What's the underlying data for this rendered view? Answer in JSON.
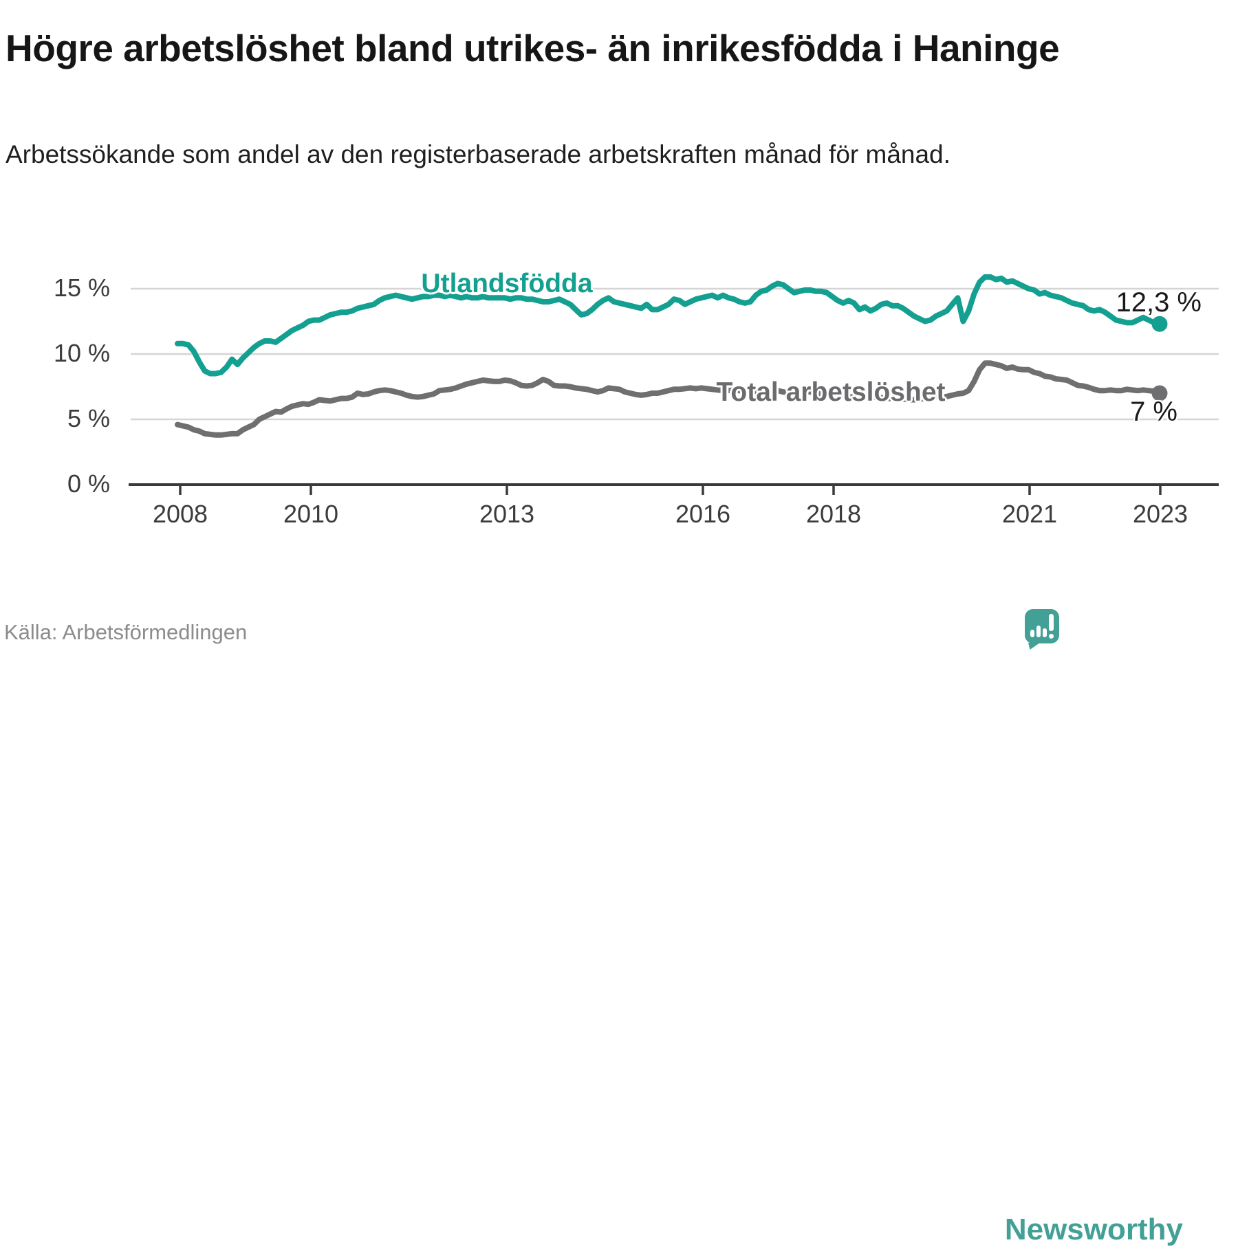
{
  "header": {
    "title": "Högre arbetslöshet bland utrikes- än inrikesfödda i Haninge",
    "subtitle": "Arbetssökande som andel av den registerbaserade arbetskraften månad för månad."
  },
  "footer": {
    "source": "Källa: Arbetsförmedlingen",
    "logo_text": "Newsworthy"
  },
  "colors": {
    "series_utlandsfodda": "#14a090",
    "series_total": "#6f6f71",
    "axis": "#3a3a3a",
    "grid": "#d5d5d5",
    "logo": "#42a096",
    "end_label_text": "#1a1a1a"
  },
  "chart_data": {
    "type": "line",
    "title": "Högre arbetslöshet bland utrikes- än inrikesfödda i Haninge",
    "subtitle": "Arbetssökande som andel av den registerbaserade arbetskraften månad för månad.",
    "unit": "%",
    "grid": true,
    "legend": "inline-labels",
    "x_range": {
      "start": "2008-01",
      "end": "2023-01",
      "frequency": "monthly",
      "points": 181
    },
    "y_axis": {
      "range": [
        0,
        16.5
      ],
      "ticks": [
        {
          "value": 15,
          "label": "15 %"
        },
        {
          "value": 10,
          "label": "10 %"
        },
        {
          "value": 5,
          "label": "5 %"
        },
        {
          "value": 0,
          "label": "0 %"
        }
      ]
    },
    "x_axis": {
      "ticks": [
        {
          "year": 2008,
          "label": "2008"
        },
        {
          "year": 2010,
          "label": "2010"
        },
        {
          "year": 2013,
          "label": "2013"
        },
        {
          "year": 2016,
          "label": "2016"
        },
        {
          "year": 2018,
          "label": "2018"
        },
        {
          "year": 2021,
          "label": "2021"
        },
        {
          "year": 2023,
          "label": "2023"
        }
      ]
    },
    "series": [
      {
        "name": "Utlandsfödda",
        "color": "#14a090",
        "end_label": "12,3 %",
        "end_value": 12.3,
        "values": [
          10.8,
          10.8,
          10.7,
          10.2,
          9.4,
          8.7,
          8.5,
          8.5,
          8.6,
          9.0,
          9.6,
          9.2,
          9.7,
          10.1,
          10.5,
          10.8,
          11.0,
          11.0,
          10.9,
          11.2,
          11.5,
          11.8,
          12.0,
          12.2,
          12.5,
          12.6,
          12.6,
          12.8,
          13.0,
          13.1,
          13.2,
          13.2,
          13.3,
          13.5,
          13.6,
          13.7,
          13.8,
          14.1,
          14.3,
          14.4,
          14.5,
          14.4,
          14.3,
          14.2,
          14.3,
          14.4,
          14.4,
          14.5,
          14.5,
          14.4,
          14.5,
          14.4,
          14.3,
          14.4,
          14.3,
          14.3,
          14.4,
          14.3,
          14.3,
          14.3,
          14.3,
          14.2,
          14.3,
          14.3,
          14.2,
          14.2,
          14.1,
          14.0,
          14.0,
          14.1,
          14.2,
          14.0,
          13.8,
          13.4,
          13.0,
          13.1,
          13.4,
          13.8,
          14.1,
          14.3,
          14.0,
          13.9,
          13.8,
          13.7,
          13.6,
          13.5,
          13.8,
          13.4,
          13.4,
          13.6,
          13.8,
          14.2,
          14.1,
          13.8,
          14.0,
          14.2,
          14.3,
          14.4,
          14.5,
          14.3,
          14.5,
          14.3,
          14.2,
          14.0,
          13.9,
          14.0,
          14.5,
          14.8,
          14.9,
          15.2,
          15.4,
          15.3,
          15.0,
          14.7,
          14.8,
          14.9,
          14.9,
          14.8,
          14.8,
          14.7,
          14.4,
          14.1,
          13.9,
          14.1,
          13.9,
          13.4,
          13.6,
          13.3,
          13.5,
          13.8,
          13.9,
          13.7,
          13.7,
          13.5,
          13.2,
          12.9,
          12.7,
          12.5,
          12.6,
          12.9,
          13.1,
          13.3,
          13.8,
          14.3,
          12.5,
          13.3,
          14.6,
          15.5,
          15.9,
          15.9,
          15.7,
          15.8,
          15.5,
          15.6,
          15.4,
          15.2,
          15.0,
          14.9,
          14.6,
          14.7,
          14.5,
          14.4,
          14.3,
          14.1,
          13.9,
          13.8,
          13.7,
          13.4,
          13.3,
          13.4,
          13.2,
          12.9,
          12.6,
          12.5,
          12.4,
          12.4,
          12.6,
          12.8,
          12.6,
          12.4,
          12.3
        ]
      },
      {
        "name": "Total arbetslöshet",
        "color": "#6f6f71",
        "end_label": "7 %",
        "end_value": 7.0,
        "values": [
          4.6,
          4.5,
          4.4,
          4.2,
          4.1,
          3.9,
          3.85,
          3.8,
          3.8,
          3.85,
          3.9,
          3.9,
          4.2,
          4.4,
          4.6,
          5.0,
          5.2,
          5.4,
          5.6,
          5.55,
          5.8,
          6.0,
          6.1,
          6.2,
          6.15,
          6.3,
          6.5,
          6.45,
          6.4,
          6.5,
          6.6,
          6.6,
          6.7,
          7.0,
          6.9,
          6.95,
          7.1,
          7.2,
          7.25,
          7.2,
          7.1,
          7.0,
          6.85,
          6.75,
          6.7,
          6.75,
          6.85,
          6.95,
          7.2,
          7.25,
          7.3,
          7.4,
          7.55,
          7.7,
          7.8,
          7.9,
          8.0,
          7.95,
          7.9,
          7.9,
          8.0,
          7.95,
          7.8,
          7.6,
          7.55,
          7.6,
          7.8,
          8.05,
          7.9,
          7.6,
          7.55,
          7.55,
          7.5,
          7.4,
          7.35,
          7.3,
          7.2,
          7.1,
          7.2,
          7.4,
          7.35,
          7.3,
          7.1,
          7.0,
          6.9,
          6.85,
          6.9,
          7.0,
          7.0,
          7.1,
          7.2,
          7.3,
          7.3,
          7.35,
          7.4,
          7.35,
          7.4,
          7.35,
          7.3,
          7.25,
          7.2,
          7.2,
          7.25,
          7.2,
          7.1,
          7.1,
          7.15,
          7.1,
          7.1,
          7.15,
          7.2,
          7.1,
          7.05,
          7.0,
          7.1,
          7.15,
          7.1,
          7.0,
          6.95,
          6.9,
          6.9,
          6.85,
          6.8,
          6.75,
          6.7,
          6.65,
          6.7,
          6.75,
          6.7,
          6.65,
          6.6,
          6.6,
          6.6,
          6.55,
          6.5,
          6.5,
          6.55,
          6.6,
          6.7,
          6.75,
          6.7,
          6.75,
          6.85,
          6.95,
          7.0,
          7.2,
          7.9,
          8.8,
          9.3,
          9.3,
          9.2,
          9.1,
          8.9,
          9.0,
          8.85,
          8.8,
          8.8,
          8.6,
          8.5,
          8.3,
          8.25,
          8.1,
          8.05,
          8.0,
          7.8,
          7.6,
          7.55,
          7.45,
          7.3,
          7.2,
          7.2,
          7.25,
          7.2,
          7.2,
          7.3,
          7.25,
          7.2,
          7.25,
          7.2,
          7.15,
          7.0
        ]
      }
    ]
  }
}
